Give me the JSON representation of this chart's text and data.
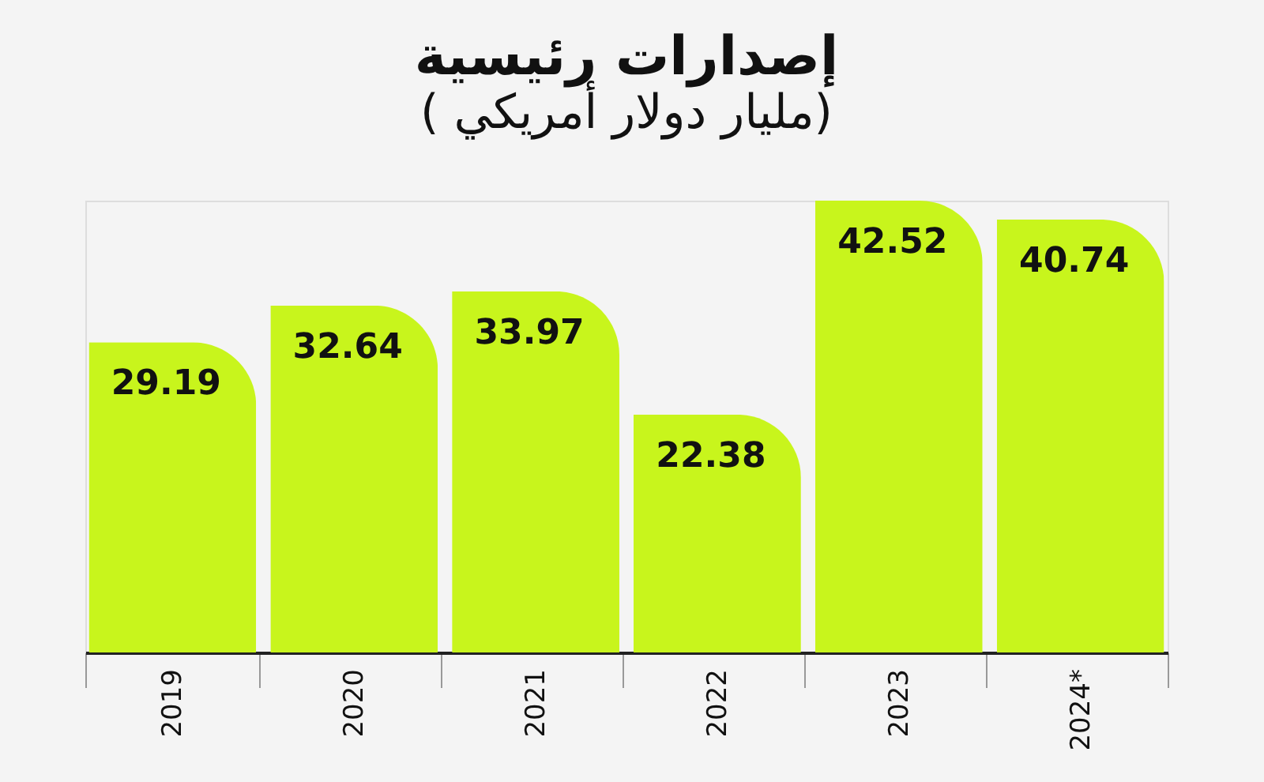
{
  "chart_data": {
    "type": "bar",
    "title": "إصدارات رئيسية",
    "subtitle": "( مليار دولار أمريكي)",
    "categories": [
      "2019",
      "2020",
      "2021",
      "2022",
      "2023",
      "2024*"
    ],
    "values": [
      29.19,
      32.64,
      33.97,
      22.38,
      42.52,
      40.74
    ],
    "color": "#c8f51c",
    "data_labels": true
  }
}
